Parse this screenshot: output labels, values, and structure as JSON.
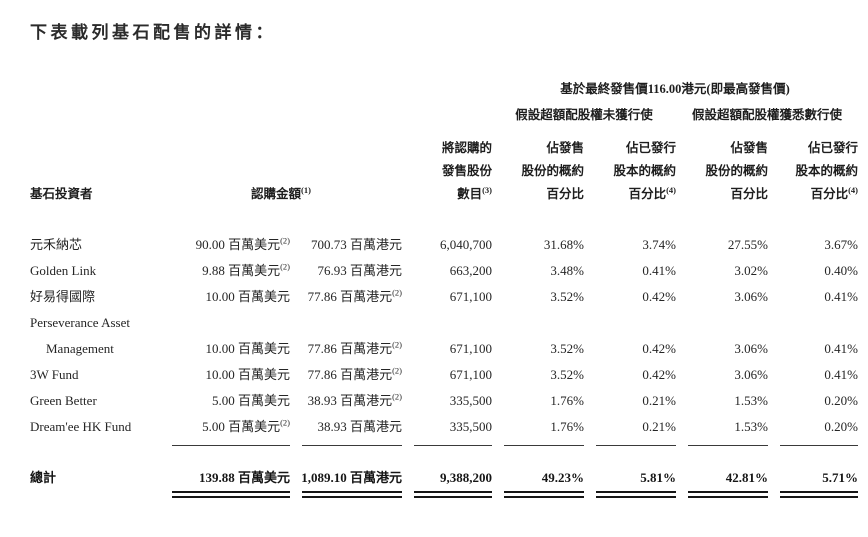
{
  "page": {
    "title": "下表載列基石配售的詳情："
  },
  "table": {
    "group_headers": {
      "price_based": "基於最終發售價116.00港元(即最高發售價)",
      "not_exercised": "假設超額配股權未獲行使",
      "fully_exercised": "假設超額配股權獲悉數行使"
    },
    "columns": {
      "investor": "基石投資者",
      "subscription_amount": {
        "label": "認購金額",
        "sup": "(1)"
      },
      "shares": {
        "l1": "將認購的",
        "l2": "發售股份",
        "l3": "數目",
        "sup": "(3)"
      },
      "pct_offer": {
        "l1": "佔發售",
        "l2": "股份的概約",
        "l3": "百分比"
      },
      "pct_issued": {
        "l1": "佔已發行",
        "l2": "股本的概約",
        "l3": "百分比",
        "sup": "(4)"
      }
    },
    "rows": [
      {
        "name": "元禾納芯",
        "cells": [
          {
            "v": "90.00 百萬美元",
            "n": "(2)"
          },
          {
            "v": "700.73 百萬港元"
          },
          {
            "v": "6,040,700"
          },
          {
            "v": "31.68%"
          },
          {
            "v": "3.74%"
          },
          {
            "v": "27.55%"
          },
          {
            "v": "3.67%"
          }
        ]
      },
      {
        "name": "Golden Link",
        "cells": [
          {
            "v": "9.88 百萬美元",
            "n": "(2)"
          },
          {
            "v": "76.93 百萬港元"
          },
          {
            "v": "663,200"
          },
          {
            "v": "3.48%"
          },
          {
            "v": "0.41%"
          },
          {
            "v": "3.02%"
          },
          {
            "v": "0.40%"
          }
        ]
      },
      {
        "name": "好易得國際",
        "cells": [
          {
            "v": "10.00 百萬美元"
          },
          {
            "v": "77.86 百萬港元",
            "n": "(2)"
          },
          {
            "v": "671,100"
          },
          {
            "v": "3.52%"
          },
          {
            "v": "0.42%"
          },
          {
            "v": "3.06%"
          },
          {
            "v": "0.41%"
          }
        ]
      },
      {
        "name": "Perseverance Asset",
        "cells": []
      },
      {
        "name": "Management",
        "indent": true,
        "cells": [
          {
            "v": "10.00 百萬美元"
          },
          {
            "v": "77.86 百萬港元",
            "n": "(2)"
          },
          {
            "v": "671,100"
          },
          {
            "v": "3.52%"
          },
          {
            "v": "0.42%"
          },
          {
            "v": "3.06%"
          },
          {
            "v": "0.41%"
          }
        ]
      },
      {
        "name": "3W Fund",
        "cells": [
          {
            "v": "10.00 百萬美元"
          },
          {
            "v": "77.86 百萬港元",
            "n": "(2)"
          },
          {
            "v": "671,100"
          },
          {
            "v": "3.52%"
          },
          {
            "v": "0.42%"
          },
          {
            "v": "3.06%"
          },
          {
            "v": "0.41%"
          }
        ]
      },
      {
        "name": "Green Better",
        "cells": [
          {
            "v": "5.00 百萬美元"
          },
          {
            "v": "38.93 百萬港元",
            "n": "(2)"
          },
          {
            "v": "335,500"
          },
          {
            "v": "1.76%"
          },
          {
            "v": "0.21%"
          },
          {
            "v": "1.53%"
          },
          {
            "v": "0.20%"
          }
        ]
      },
      {
        "name": "Dream'ee HK Fund",
        "cells": [
          {
            "v": "5.00 百萬美元",
            "n": "(2)"
          },
          {
            "v": "38.93 百萬港元"
          },
          {
            "v": "335,500"
          },
          {
            "v": "1.76%"
          },
          {
            "v": "0.21%"
          },
          {
            "v": "1.53%"
          },
          {
            "v": "0.20%"
          }
        ]
      }
    ],
    "total": {
      "label": "總計",
      "cells": [
        "139.88 百萬美元",
        "1,089.10 百萬港元",
        "9,388,200",
        "49.23%",
        "5.81%",
        "42.81%",
        "5.71%"
      ]
    }
  }
}
